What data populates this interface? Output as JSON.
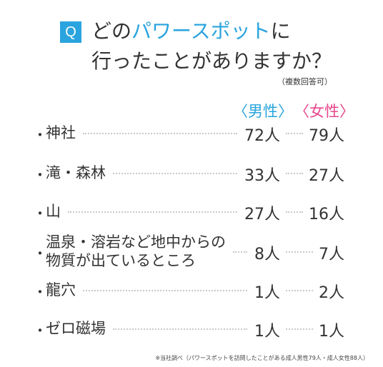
{
  "header": {
    "badge": "Q",
    "line1_pre": "どの",
    "line1_highlight": "パワースポット",
    "line1_post": "に",
    "line2": "行ったことがありますか？",
    "note": "（複数回答可）"
  },
  "columns": {
    "male": "〈男性〉",
    "female": "〈女性〉"
  },
  "footnote": "※当社調べ（パワースポットを訪問したことがある成人男性79人・成人女性88人）",
  "colors": {
    "accent_blue": "#2aa4de",
    "accent_pink": "#e8458c",
    "text": "#333333"
  },
  "chart_data": {
    "type": "table",
    "title": "どのパワースポットに行ったことがありますか？",
    "categories": [
      "神社",
      "滝・森林",
      "山",
      "温泉・溶岩など地中からの物質が出ているところ",
      "龍穴",
      "ゼロ磁場"
    ],
    "series": [
      {
        "name": "〈男性〉",
        "values": [
          72,
          33,
          27,
          8,
          1,
          1
        ],
        "labels": [
          "72人",
          "33人",
          "27人",
          "8人",
          "1人",
          "1人"
        ]
      },
      {
        "name": "〈女性〉",
        "values": [
          79,
          27,
          16,
          7,
          2,
          1
        ],
        "labels": [
          "79人",
          "27人",
          "16人",
          "7人",
          "2人",
          "1人"
        ]
      }
    ],
    "label_lines": [
      [
        "神社"
      ],
      [
        "滝・森林"
      ],
      [
        "山"
      ],
      [
        "温泉・溶岩など地中からの",
        "物質が出ているところ"
      ],
      [
        "龍穴"
      ],
      [
        "ゼロ磁場"
      ]
    ]
  }
}
